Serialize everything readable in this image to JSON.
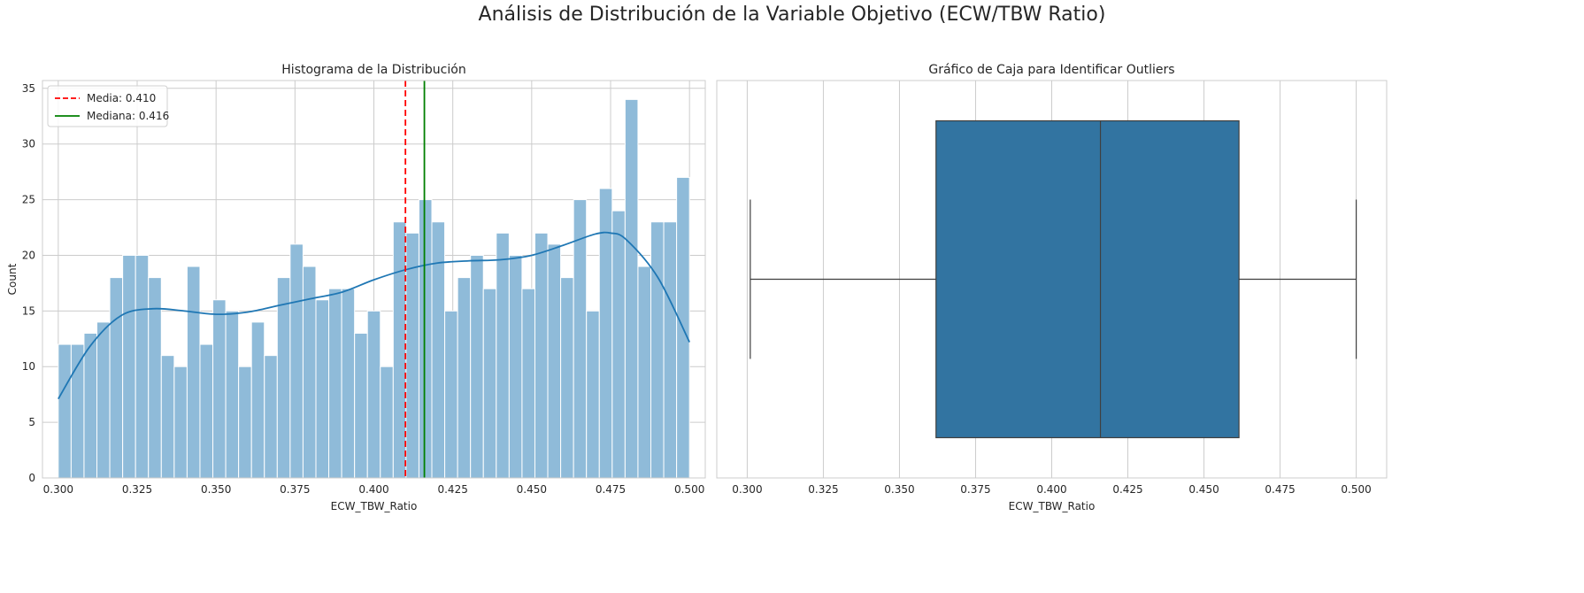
{
  "suptitle": "Análisis de Distribución de la Variable Objetivo (ECW/TBW Ratio)",
  "chart_data": [
    {
      "type": "bar",
      "subtype": "histogram-with-kde",
      "title": "Histograma de la Distribución",
      "xlabel": "ECW_TBW_Ratio",
      "ylabel": "Count",
      "xlim": [
        0.295,
        0.505
      ],
      "ylim": [
        0,
        35.7
      ],
      "xticks": [
        0.3,
        0.325,
        0.35,
        0.375,
        0.4,
        0.425,
        0.45,
        0.475,
        0.5
      ],
      "xtick_labels": [
        "0.300",
        "0.325",
        "0.350",
        "0.375",
        "0.400",
        "0.425",
        "0.450",
        "0.475",
        "0.500"
      ],
      "yticks": [
        0,
        5,
        10,
        15,
        20,
        25,
        30,
        35
      ],
      "ytick_labels": [
        "0",
        "5",
        "10",
        "15",
        "20",
        "25",
        "30",
        "35"
      ],
      "grid": true,
      "bin_range": [
        0.3,
        0.5
      ],
      "counts": [
        12,
        12,
        13,
        14,
        18,
        20,
        20,
        18,
        11,
        10,
        19,
        12,
        16,
        15,
        10,
        14,
        11,
        18,
        21,
        19,
        16,
        17,
        17,
        13,
        15,
        10,
        23,
        22,
        25,
        23,
        15,
        18,
        20,
        17,
        22,
        20,
        17,
        22,
        21,
        18,
        25,
        15,
        26,
        24,
        34,
        19,
        23,
        23,
        27
      ],
      "kde": {
        "x": [
          0.3,
          0.31,
          0.32,
          0.33,
          0.34,
          0.35,
          0.36,
          0.37,
          0.38,
          0.39,
          0.4,
          0.41,
          0.42,
          0.43,
          0.44,
          0.45,
          0.46,
          0.47,
          0.475,
          0.48,
          0.49,
          0.5
        ],
        "y": [
          7.1,
          11.8,
          14.6,
          15.2,
          15.0,
          14.7,
          14.9,
          15.5,
          16.1,
          16.7,
          17.8,
          18.7,
          19.3,
          19.5,
          19.6,
          20.0,
          20.9,
          21.9,
          22.0,
          21.4,
          18.0,
          12.2
        ],
        "color": "#1f77b4"
      },
      "bar_color": "#8fbbd9",
      "lines": [
        {
          "name": "Media: 0.410",
          "x": 0.41,
          "color": "#ff0000",
          "style": "dashed"
        },
        {
          "name": "Mediana: 0.416",
          "x": 0.416,
          "color": "#008000",
          "style": "solid"
        }
      ],
      "legend_position": "upper-left"
    },
    {
      "type": "box",
      "title": "Gráfico de Caja para Identificar Outliers",
      "xlabel": "ECW_TBW_Ratio",
      "xlim": [
        0.29,
        0.51
      ],
      "xticks": [
        0.3,
        0.325,
        0.35,
        0.375,
        0.4,
        0.425,
        0.45,
        0.475,
        0.5
      ],
      "xtick_labels": [
        "0.300",
        "0.325",
        "0.350",
        "0.375",
        "0.400",
        "0.425",
        "0.450",
        "0.475",
        "0.500"
      ],
      "grid": true,
      "box": {
        "whisker_low": 0.301,
        "q1": 0.362,
        "median": 0.416,
        "q3": 0.4615,
        "whisker_high": 0.5
      },
      "box_color": "#3274a1"
    }
  ]
}
